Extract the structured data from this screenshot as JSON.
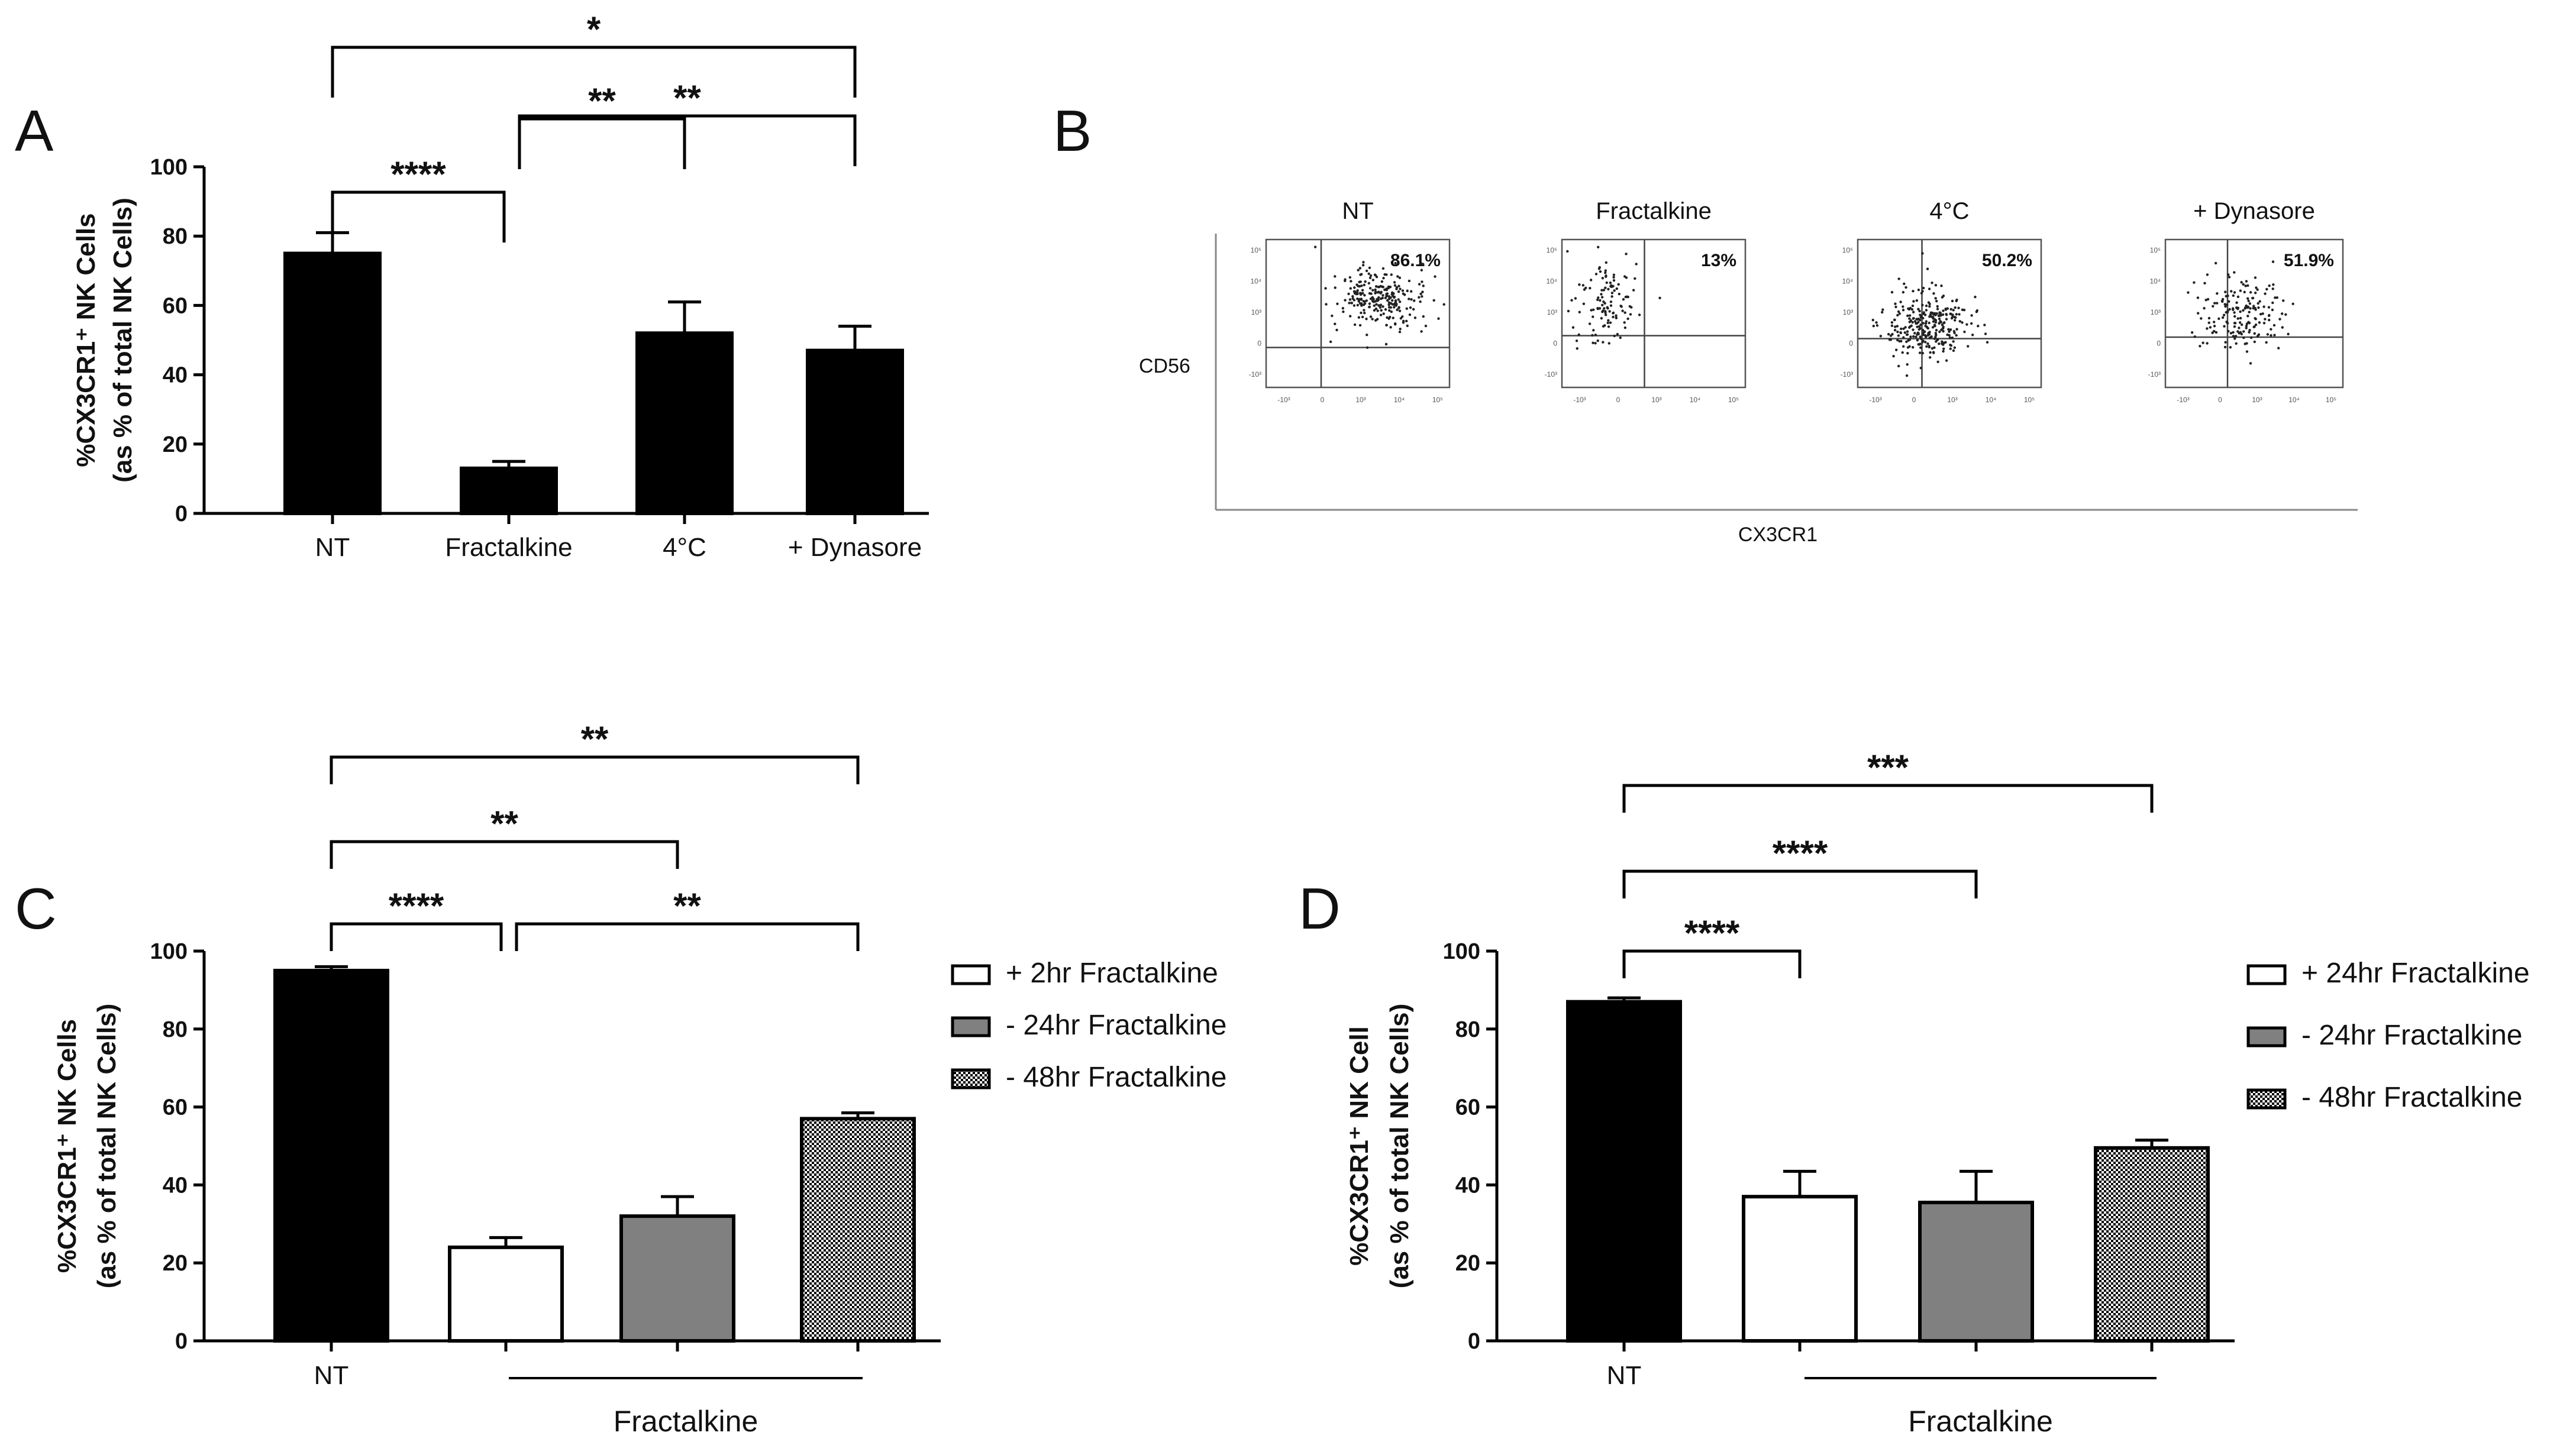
{
  "chart_data": [
    {
      "panel": "A",
      "type": "bar",
      "ylabel": "%CX3CR1⁺ NK Cells",
      "ylabel2": "(as % of total NK Cells)",
      "ylim": [
        0,
        100
      ],
      "yticks": [
        "0",
        "20",
        "40",
        "60",
        "80",
        "100"
      ],
      "categories": [
        "NT",
        "Fractalkine",
        "4°C",
        "+ Dynasore"
      ],
      "values": [
        75,
        13,
        52,
        47
      ],
      "errors": [
        6,
        2,
        9,
        7
      ],
      "fills": [
        "solid",
        "solid",
        "solid",
        "solid"
      ],
      "comparisons": [
        {
          "from": 0,
          "to": 1,
          "label": "****"
        },
        {
          "from": 1,
          "to": 2,
          "label": "**"
        },
        {
          "from": 1,
          "to": 3,
          "label": "**"
        },
        {
          "from": 0,
          "to": 3,
          "label": "*"
        }
      ]
    },
    {
      "panel": "C",
      "type": "bar",
      "ylabel": "%CX3CR1⁺ NK Cells",
      "ylabel2": "(as % of total NK Cells)",
      "ylim": [
        0,
        100
      ],
      "yticks": [
        "0",
        "20",
        "40",
        "60",
        "80",
        "100"
      ],
      "categories": [
        "NT",
        "+ 2hr Fractalkine",
        "- 24hr Fractalkine",
        "- 48hr Fractalkine"
      ],
      "values": [
        95,
        24,
        32,
        57
      ],
      "errors": [
        1,
        2.5,
        5,
        1.5
      ],
      "fills": [
        "solid",
        "white",
        "gray",
        "checker"
      ],
      "xlabel_nt": "NT",
      "xlabel_group": "Fractalkine",
      "legend": [
        "+ 2hr Fractalkine",
        "- 24hr Fractalkine",
        "- 48hr Fractalkine"
      ],
      "comparisons": [
        {
          "from": 0,
          "to": 1,
          "label": "****"
        },
        {
          "from": 1,
          "to": 3,
          "label": "**"
        },
        {
          "from": 0,
          "to": 2,
          "label": "**"
        },
        {
          "from": 0,
          "to": 3,
          "label": "**"
        }
      ]
    },
    {
      "panel": "D",
      "type": "bar",
      "ylabel": "%CX3CR1⁺ NK Cell",
      "ylabel2": "(as % of total NK Cells)",
      "ylim": [
        0,
        100
      ],
      "yticks": [
        "0",
        "20",
        "40",
        "60",
        "80",
        "100"
      ],
      "categories": [
        "NT",
        "+ 24hr Fractalkine",
        "- 24hr Fractalkine",
        "- 48hr Fractalkine"
      ],
      "values": [
        87,
        37,
        35.5,
        49.5
      ],
      "errors": [
        1,
        6.5,
        8,
        2
      ],
      "fills": [
        "solid",
        "white",
        "gray",
        "checker"
      ],
      "xlabel_nt": "NT",
      "xlabel_group": "Fractalkine",
      "legend": [
        "+ 24hr Fractalkine",
        "- 24hr Fractalkine",
        "- 48hr Fractalkine"
      ],
      "comparisons": [
        {
          "from": 0,
          "to": 1,
          "label": "****"
        },
        {
          "from": 0,
          "to": 2,
          "label": "****"
        },
        {
          "from": 0,
          "to": 3,
          "label": "***"
        }
      ]
    },
    {
      "panel": "B",
      "type": "scatter",
      "ylabel": "CD56",
      "xlabel": "CX3CR1",
      "plots": [
        {
          "title": "NT",
          "percent": "86.1%",
          "gate": [
            0.3,
            0.73
          ],
          "n": 260,
          "center": [
            0.62,
            0.4
          ],
          "spread": [
            0.13,
            0.1
          ]
        },
        {
          "title": "Fractalkine",
          "percent": "13%",
          "gate": [
            0.45,
            0.65
          ],
          "n": 120,
          "center": [
            0.25,
            0.42
          ],
          "spread": [
            0.09,
            0.14
          ]
        },
        {
          "title": "4°C",
          "percent": "50.2%",
          "gate": [
            0.35,
            0.67
          ],
          "n": 300,
          "center": [
            0.38,
            0.58
          ],
          "spread": [
            0.12,
            0.12
          ]
        },
        {
          "title": "+ Dynasore",
          "percent": "51.9%",
          "gate": [
            0.35,
            0.66
          ],
          "n": 180,
          "center": [
            0.42,
            0.5
          ],
          "spread": [
            0.12,
            0.13
          ]
        }
      ]
    }
  ],
  "panel_labels": {
    "a": "A",
    "b": "B",
    "c": "C",
    "d": "D"
  }
}
